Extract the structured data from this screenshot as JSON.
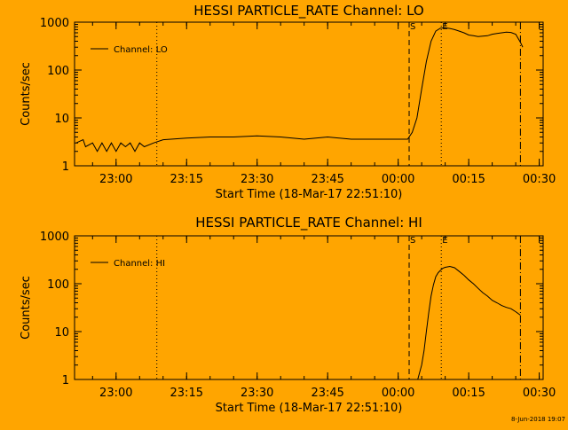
{
  "chart_data": [
    {
      "type": "line",
      "title": "HESSI PARTICLE_RATE Channel: LO",
      "xlabel": "Start Time (18-Mar-17 22:51:10)",
      "ylabel": "Counts/sec",
      "y_scale": "log",
      "ylim": [
        1,
        1000
      ],
      "xlim": [
        "22:51:10",
        "00:30:50"
      ],
      "x_ticks": [
        "23:00",
        "23:15",
        "23:30",
        "23:45",
        "00:00",
        "00:15",
        "00:30"
      ],
      "y_ticks": [
        "1",
        "10",
        "100",
        "1000"
      ],
      "grid": false,
      "legend": "top-left",
      "series": [
        {
          "name": "Channel: LO",
          "x": [
            "22:51:30",
            "22:53:00",
            "22:53:30",
            "22:55:00",
            "22:56:00",
            "22:57:00",
            "22:58:00",
            "22:59:00",
            "23:00:00",
            "23:01:00",
            "23:02:00",
            "23:03:00",
            "23:04:00",
            "23:05:00",
            "23:06:00",
            "23:08:00",
            "23:10:00",
            "23:15:00",
            "23:20:00",
            "23:25:00",
            "23:30:00",
            "23:35:00",
            "23:40:00",
            "23:45:00",
            "23:50:00",
            "23:55:00",
            "00:00:00",
            "00:02:00",
            "00:03:00",
            "00:04:00",
            "00:05:00",
            "00:06:00",
            "00:07:00",
            "00:08:00",
            "00:09:00",
            "00:10:00",
            "00:11:00",
            "00:12:00",
            "00:13:00",
            "00:14:00",
            "00:15:00",
            "00:16:00",
            "00:17:00",
            "00:18:00",
            "00:19:00",
            "00:20:00",
            "00:21:00",
            "00:22:00",
            "00:23:00",
            "00:24:00",
            "00:25:00",
            "00:26:00",
            "00:26:30"
          ],
          "values": [
            3,
            3.5,
            2.5,
            3,
            2,
            3,
            2,
            3,
            2,
            3,
            2.5,
            3,
            2,
            3,
            2.5,
            3,
            3.5,
            3.8,
            4,
            4,
            4.2,
            4,
            3.6,
            4,
            3.6,
            3.6,
            3.6,
            3.6,
            5,
            10,
            40,
            150,
            400,
            650,
            750,
            760,
            740,
            700,
            650,
            600,
            540,
            520,
            500,
            510,
            520,
            560,
            580,
            600,
            620,
            610,
            560,
            380,
            300
          ]
        }
      ],
      "flags": [
        {
          "label": "",
          "x": "23:08:40",
          "style": "dotted"
        },
        {
          "label": "S",
          "x": "00:02:20",
          "style": "dashed"
        },
        {
          "label": "E",
          "x": "00:09:10",
          "style": "dotted"
        },
        {
          "label": "",
          "x": "00:26:00",
          "style": "dash-dot"
        }
      ]
    },
    {
      "type": "line",
      "title": "HESSI PARTICLE_RATE Channel: HI",
      "xlabel": "Start Time (18-Mar-17 22:51:10)",
      "ylabel": "Counts/sec",
      "y_scale": "log",
      "ylim": [
        1,
        1000
      ],
      "xlim": [
        "22:51:10",
        "00:30:50"
      ],
      "x_ticks": [
        "23:00",
        "23:15",
        "23:30",
        "23:45",
        "00:00",
        "00:15",
        "00:30"
      ],
      "y_ticks": [
        "1",
        "10",
        "100",
        "1000"
      ],
      "grid": false,
      "legend": "top-left",
      "series": [
        {
          "name": "Channel: HI",
          "x": [
            "00:04:10",
            "00:05:00",
            "00:05:30",
            "00:06:00",
            "00:06:30",
            "00:07:00",
            "00:07:30",
            "00:08:00",
            "00:08:30",
            "00:09:00",
            "00:09:30",
            "00:10:00",
            "00:11:00",
            "00:12:00",
            "00:13:00",
            "00:14:00",
            "00:15:00",
            "00:16:00",
            "00:17:00",
            "00:18:00",
            "00:19:00",
            "00:20:00",
            "00:21:00",
            "00:22:00",
            "00:23:00",
            "00:24:00",
            "00:25:00",
            "00:26:00"
          ],
          "values": [
            1,
            2,
            4,
            10,
            25,
            55,
            95,
            140,
            170,
            190,
            210,
            220,
            230,
            215,
            180,
            150,
            120,
            100,
            80,
            65,
            55,
            45,
            40,
            35,
            32,
            30,
            26,
            22
          ]
        }
      ],
      "flags": [
        {
          "label": "",
          "x": "23:08:40",
          "style": "dotted"
        },
        {
          "label": "S",
          "x": "00:02:20",
          "style": "dashed"
        },
        {
          "label": "E",
          "x": "00:09:10",
          "style": "dotted"
        },
        {
          "label": "",
          "x": "00:26:00",
          "style": "dash-dot"
        }
      ]
    }
  ],
  "footer": {
    "timestamp": "8-Jun-2018 19:07"
  },
  "colors": {
    "background": "#ffa500",
    "foreground": "#000000"
  }
}
